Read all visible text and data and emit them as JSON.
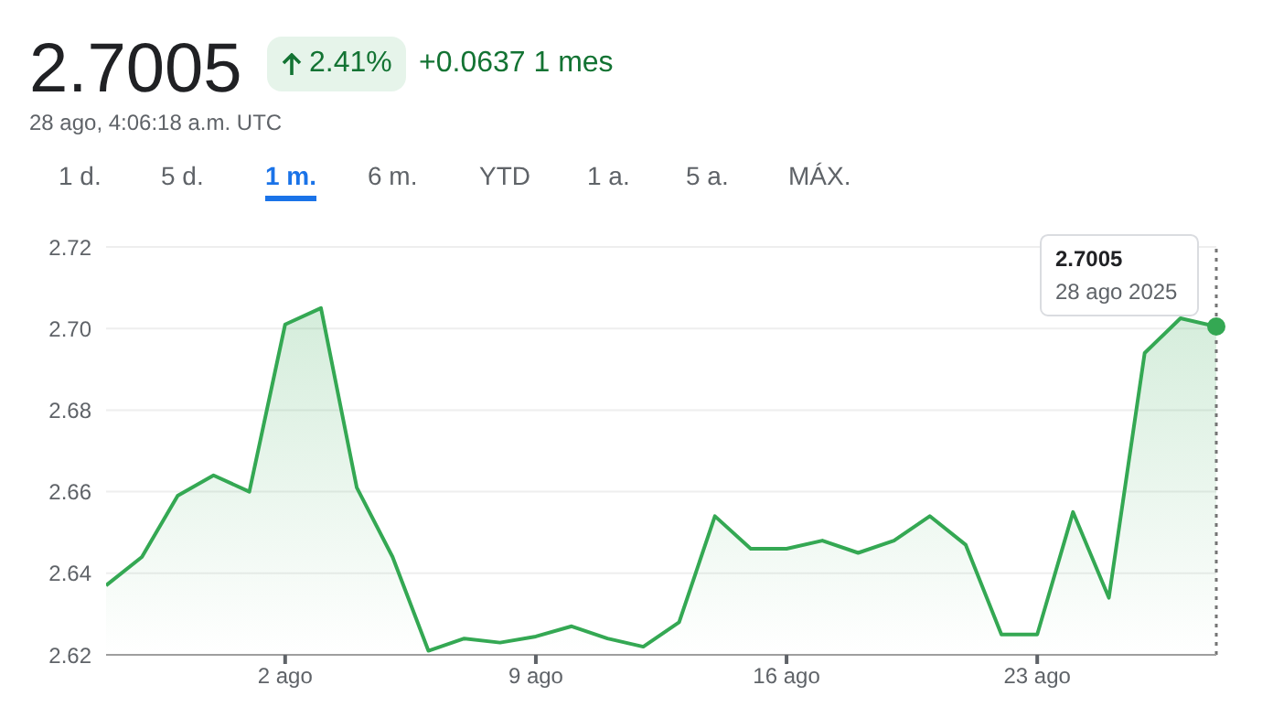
{
  "chart_data": {
    "type": "area",
    "title": "2.7005",
    "subtitle": "28 ago, 4:06:18 a.m. UTC",
    "annotations": [
      "2.41%",
      "+0.0637 1 mes",
      "1 d.",
      "5 d.",
      "1 m.",
      "6 m.",
      "YTD",
      "1 a.",
      "5 a.",
      "MÁX.",
      "2.7005",
      "28 ago 2025"
    ],
    "x": [
      "2025-07-28",
      "2025-07-29",
      "2025-07-30",
      "2025-07-31",
      "2025-08-01",
      "2025-08-02",
      "2025-08-03",
      "2025-08-04",
      "2025-08-05",
      "2025-08-06",
      "2025-08-07",
      "2025-08-08",
      "2025-08-09",
      "2025-08-10",
      "2025-08-11",
      "2025-08-12",
      "2025-08-13",
      "2025-08-14",
      "2025-08-15",
      "2025-08-16",
      "2025-08-17",
      "2025-08-18",
      "2025-08-19",
      "2025-08-20",
      "2025-08-21",
      "2025-08-22",
      "2025-08-23",
      "2025-08-24",
      "2025-08-25",
      "2025-08-26",
      "2025-08-27",
      "2025-08-28"
    ],
    "series": [
      {
        "color": "#34a853",
        "values": [
          2.637,
          2.644,
          2.659,
          2.664,
          2.66,
          2.701,
          2.705,
          2.661,
          2.644,
          2.621,
          2.624,
          2.623,
          2.6245,
          2.627,
          2.624,
          2.622,
          2.628,
          2.654,
          2.646,
          2.646,
          2.648,
          2.645,
          2.648,
          2.654,
          2.647,
          2.625,
          2.625,
          2.655,
          2.634,
          2.694,
          2.7025,
          2.7005
        ]
      }
    ],
    "xlim": [
      "2025-07-28",
      "2025-08-28"
    ],
    "xticks": [
      {
        "value": "2025-08-02",
        "label": "2 ago"
      },
      {
        "value": "2025-08-09",
        "label": "9 ago"
      },
      {
        "value": "2025-08-16",
        "label": "16 ago"
      },
      {
        "value": "2025-08-23",
        "label": "23 ago"
      }
    ],
    "ylim": [
      2.62,
      2.72
    ],
    "yticks": [
      2.62,
      2.64,
      2.66,
      2.68,
      {
        "value": 2.7,
        "label": "2.70"
      },
      2.72
    ],
    "ref_lines": [
      {
        "axis": "x",
        "value": "2025-08-28",
        "color": "#757575",
        "line_style": "dotted"
      }
    ],
    "grid": "y",
    "marker": "none",
    "line_style": "solid",
    "legend": false
  }
}
